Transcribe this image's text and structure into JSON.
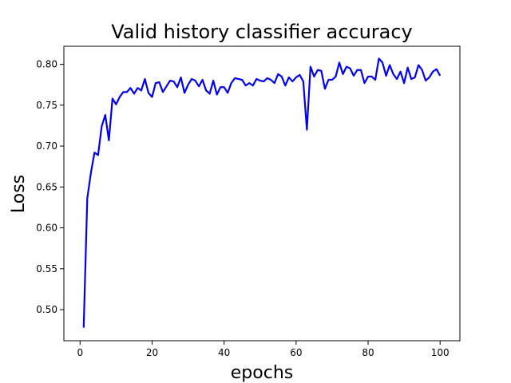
{
  "chart_data": {
    "type": "line",
    "title": "Valid history classifier accuracy",
    "xlabel": "epochs",
    "ylabel": "Loss",
    "xlim": [
      -4.5,
      105.5
    ],
    "ylim": [
      0.462,
      0.822
    ],
    "xticks": [
      0,
      20,
      40,
      60,
      80,
      100
    ],
    "yticks": [
      0.5,
      0.55,
      0.6,
      0.65,
      0.7,
      0.75,
      0.8
    ],
    "ytick_labels": [
      "0.50",
      "0.55",
      "0.60",
      "0.65",
      "0.70",
      "0.75",
      "0.80"
    ],
    "grid": false,
    "legend": false,
    "series": [
      {
        "color": "#0000ee",
        "x": [
          1,
          2,
          3,
          4,
          5,
          6,
          7,
          8,
          9,
          10,
          11,
          12,
          13,
          14,
          15,
          16,
          17,
          18,
          19,
          20,
          21,
          22,
          23,
          24,
          25,
          26,
          27,
          28,
          29,
          30,
          31,
          32,
          33,
          34,
          35,
          36,
          37,
          38,
          39,
          40,
          41,
          42,
          43,
          44,
          45,
          46,
          47,
          48,
          49,
          50,
          51,
          52,
          53,
          54,
          55,
          56,
          57,
          58,
          59,
          60,
          61,
          62,
          63,
          64,
          65,
          66,
          67,
          68,
          69,
          70,
          71,
          72,
          73,
          74,
          75,
          76,
          77,
          78,
          79,
          80,
          81,
          82,
          83,
          84,
          85,
          86,
          87,
          88,
          89,
          90,
          91,
          92,
          93,
          94,
          95,
          96,
          97,
          98,
          99,
          100
        ],
        "y": [
          0.478,
          0.636,
          0.667,
          0.692,
          0.689,
          0.724,
          0.738,
          0.707,
          0.758,
          0.751,
          0.76,
          0.766,
          0.766,
          0.771,
          0.764,
          0.771,
          0.768,
          0.782,
          0.765,
          0.76,
          0.777,
          0.778,
          0.766,
          0.773,
          0.78,
          0.779,
          0.772,
          0.784,
          0.765,
          0.775,
          0.782,
          0.78,
          0.773,
          0.781,
          0.768,
          0.764,
          0.78,
          0.763,
          0.772,
          0.772,
          0.765,
          0.777,
          0.783,
          0.782,
          0.781,
          0.774,
          0.777,
          0.774,
          0.782,
          0.78,
          0.779,
          0.783,
          0.781,
          0.777,
          0.788,
          0.785,
          0.774,
          0.784,
          0.779,
          0.784,
          0.787,
          0.779,
          0.72,
          0.797,
          0.785,
          0.793,
          0.792,
          0.77,
          0.781,
          0.781,
          0.785,
          0.802,
          0.788,
          0.797,
          0.795,
          0.786,
          0.793,
          0.793,
          0.777,
          0.785,
          0.785,
          0.781,
          0.807,
          0.802,
          0.786,
          0.799,
          0.788,
          0.782,
          0.791,
          0.777,
          0.796,
          0.782,
          0.784,
          0.799,
          0.793,
          0.78,
          0.784,
          0.791,
          0.794,
          0.786
        ]
      }
    ]
  }
}
